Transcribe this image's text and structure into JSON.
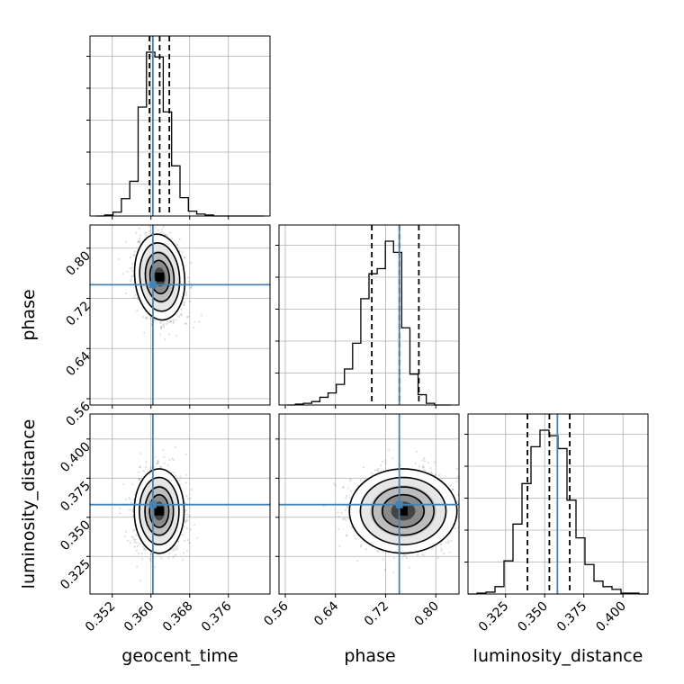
{
  "chart_data": {
    "type": "corner",
    "parameters": [
      "geocent_time",
      "phase",
      "luminosity_distance"
    ],
    "axis_labels": {
      "geocent_time": "geocent_time",
      "phase": "phase",
      "luminosity_distance": "luminosity_distance"
    },
    "ranges": {
      "geocent_time": [
        0.3474,
        0.3846
      ],
      "phase": [
        0.55,
        0.837
      ],
      "luminosity_distance": [
        0.301,
        0.416
      ]
    },
    "ticks": {
      "geocent_time": [
        "0.352",
        "0.360",
        "0.368",
        "0.376"
      ],
      "phase": [
        "0.56",
        "0.64",
        "0.72",
        "0.80"
      ],
      "luminosity_distance": [
        "0.325",
        "0.350",
        "0.375",
        "0.400"
      ]
    },
    "truths": {
      "geocent_time": 0.3604,
      "phase": 0.7418,
      "luminosity_distance": 0.3581
    },
    "colors": {
      "truth": "#4682b4",
      "hist": "#000000",
      "contour": "#000000",
      "grid": "#b0b0b0"
    },
    "grid": true,
    "histograms": {
      "geocent_time": {
        "edges_range": [
          0.3487,
          0.3833
        ],
        "counts": [
          0,
          1,
          4,
          18,
          36,
          113,
          170,
          165,
          108,
          52,
          19,
          5,
          2,
          1,
          0,
          0,
          0,
          0,
          0,
          0
        ],
        "quantiles": [
          0.3597,
          0.3618,
          0.3638
        ]
      },
      "phase": {
        "edges_range": [
          0.563,
          0.824
        ],
        "counts": [
          0,
          1,
          2,
          4,
          9,
          14,
          24,
          42,
          72,
          124,
          153,
          159,
          191,
          178,
          90,
          36,
          12,
          2,
          0,
          0
        ],
        "quantiles": [
          0.698,
          0.742,
          0.773
        ]
      },
      "luminosity_distance": {
        "edges_range": [
          0.301,
          0.416
        ],
        "counts": [
          0,
          1,
          2,
          8,
          36,
          76,
          120,
          160,
          178,
          172,
          158,
          102,
          61,
          32,
          14,
          8,
          5,
          1,
          1,
          0
        ],
        "quantiles": [
          0.339,
          0.353,
          0.366
        ]
      }
    },
    "scatter_2d": [
      {
        "x": "geocent_time",
        "y": "phase",
        "center": [
          0.3618,
          0.754
        ],
        "sd": [
          0.0021,
          0.028
        ],
        "rho": -0.15
      },
      {
        "x": "geocent_time",
        "y": "luminosity_distance",
        "center": [
          0.3617,
          0.354
        ],
        "sd": [
          0.0021,
          0.011
        ],
        "rho": 0.0
      },
      {
        "x": "phase",
        "y": "luminosity_distance",
        "center": [
          0.748,
          0.354
        ],
        "sd": [
          0.035,
          0.011
        ],
        "rho": 0.0
      }
    ]
  }
}
